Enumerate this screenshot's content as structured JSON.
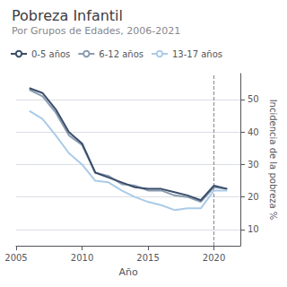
{
  "chart_data": {
    "type": "line",
    "title": "Pobreza Infantil",
    "subtitle": "Por Grupos de Edades, 2006-2021",
    "xlabel": "Año",
    "ylabel": "Incidencia de la pobreza %",
    "x": [
      2006,
      2007,
      2008,
      2009,
      2010,
      2011,
      2012,
      2013,
      2014,
      2015,
      2016,
      2017,
      2018,
      2019,
      2020,
      2021
    ],
    "series": [
      {
        "name": "0-5 años",
        "color": "#3a4e6b",
        "values": [
          53.5,
          52.0,
          47.0,
          40.0,
          36.5,
          27.5,
          26.0,
          24.5,
          23.0,
          22.5,
          22.5,
          21.5,
          20.5,
          19.0,
          23.5,
          22.5
        ]
      },
      {
        "name": "6-12 años",
        "color": "#8a9bb0",
        "values": [
          53.0,
          51.0,
          46.0,
          39.0,
          36.0,
          27.5,
          26.5,
          24.0,
          23.5,
          22.0,
          22.0,
          20.5,
          20.0,
          18.5,
          23.0,
          22.5
        ]
      },
      {
        "name": "13-17 años",
        "color": "#aacbe8",
        "values": [
          46.5,
          44.0,
          39.0,
          33.5,
          30.0,
          25.0,
          24.5,
          22.0,
          20.0,
          18.5,
          17.5,
          16.0,
          16.5,
          16.5,
          22.0,
          22.0
        ]
      }
    ],
    "xlim": [
      2005,
      2022
    ],
    "xticks": [
      2005,
      2010,
      2015,
      2020
    ],
    "ylim": [
      5,
      58
    ],
    "yticks": [
      10,
      20,
      30,
      40,
      50
    ],
    "grid": true,
    "legend": "upper left",
    "vlines": [
      2020
    ]
  }
}
